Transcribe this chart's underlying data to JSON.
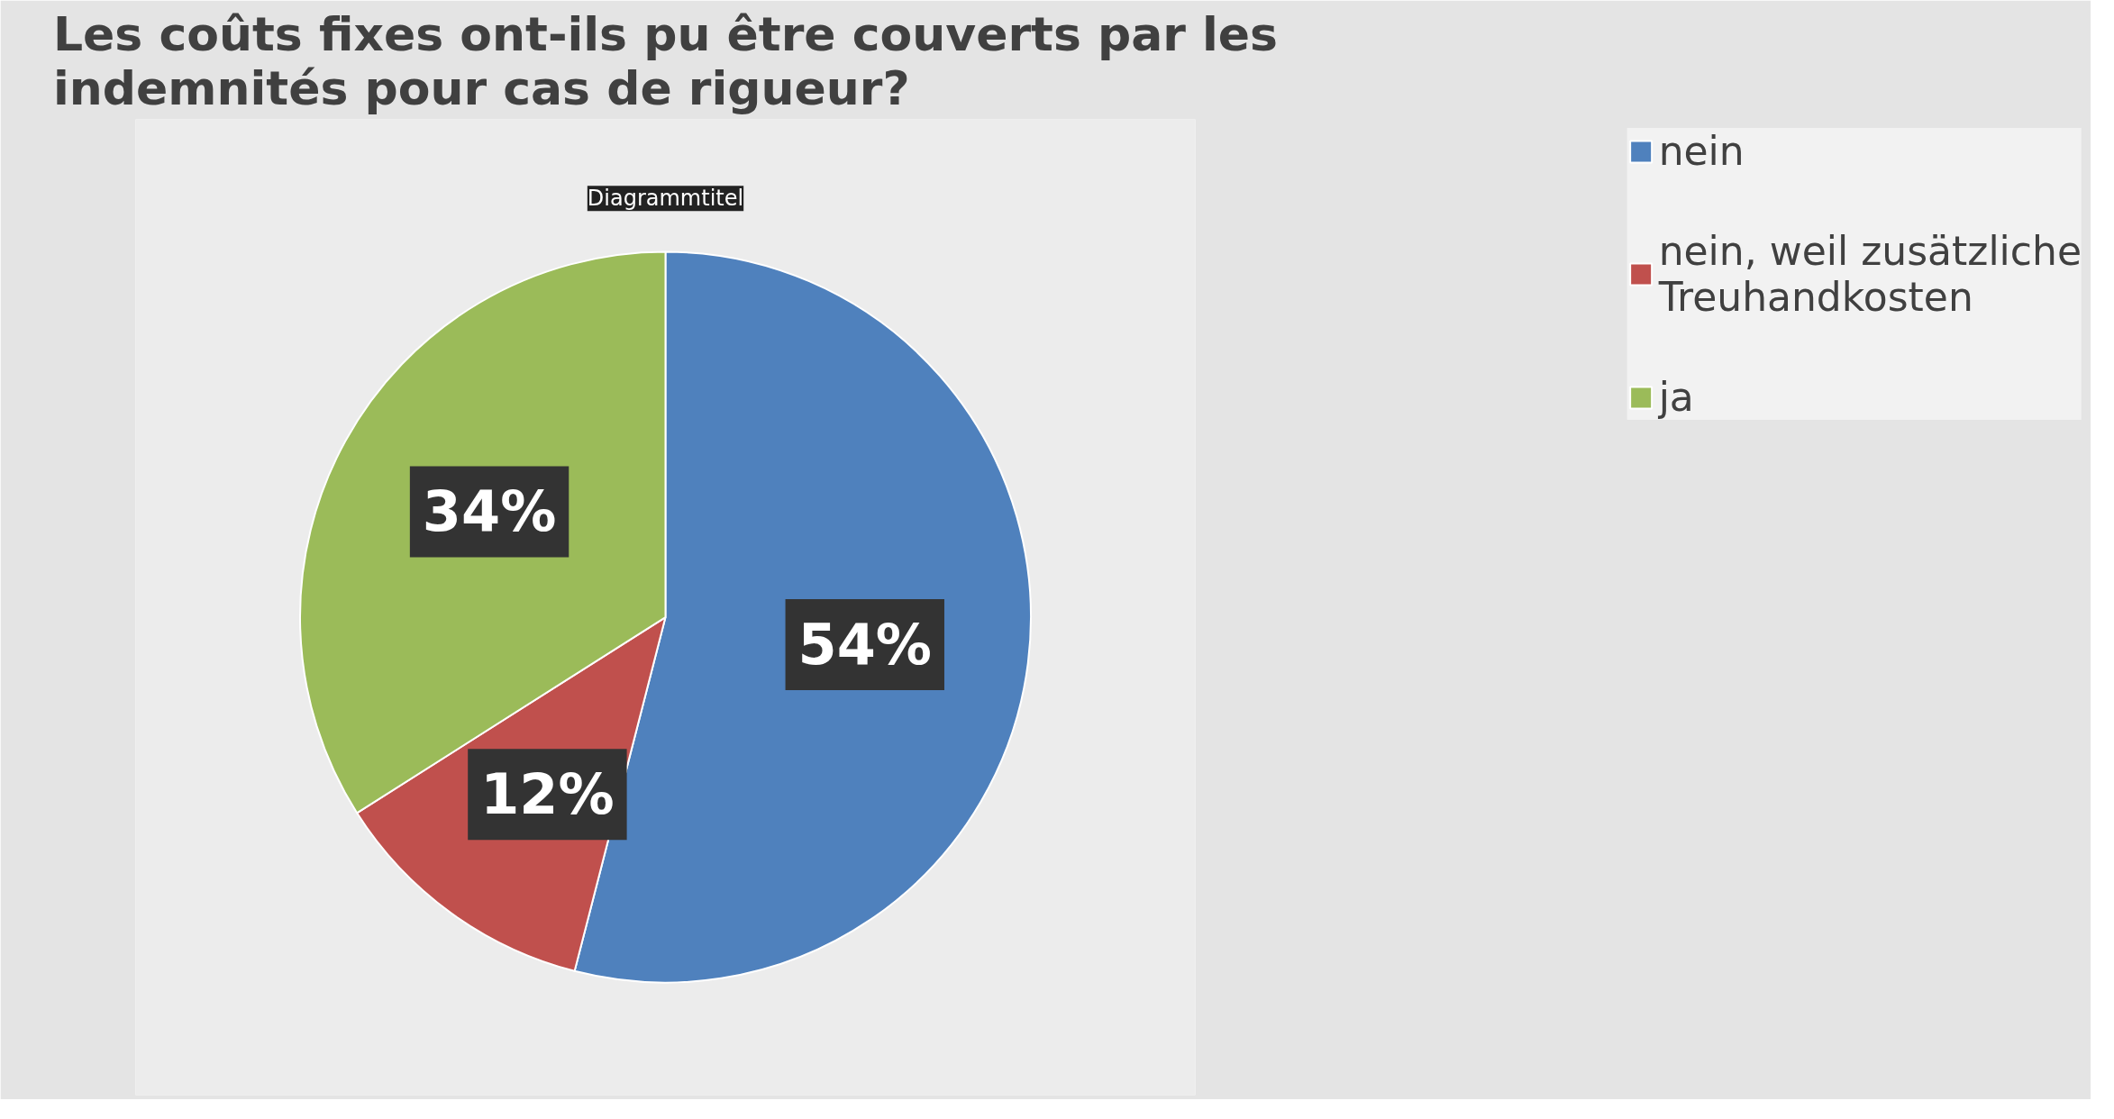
{
  "chart_data": {
    "type": "pie",
    "title": "Les coûts fixes ont-ils pu être couverts par les indemnités pour cas de rigueur?",
    "categories": [
      "nein",
      "nein, weil zusätzliche Treuhandkosten",
      "ja"
    ],
    "values": [
      54,
      12,
      34
    ],
    "colors": [
      "#4f81bd",
      "#c0504d",
      "#9bbb59"
    ],
    "value_labels": [
      "54%",
      "12%",
      "34%"
    ],
    "annotations": [
      "Diagrammtitel"
    ],
    "legend": "right"
  }
}
